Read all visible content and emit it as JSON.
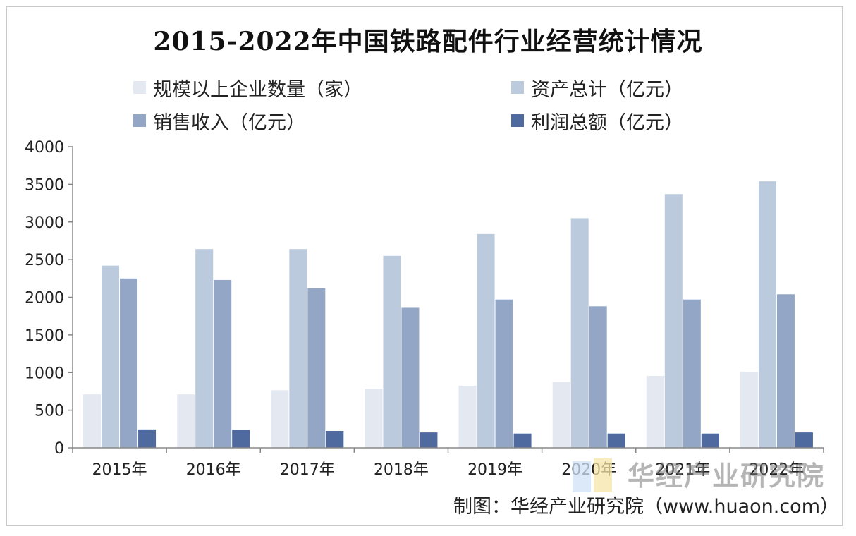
{
  "chart_data": {
    "type": "bar",
    "title": "2015-2022年中国铁路配件行业经营统计情况",
    "categories": [
      "2015年",
      "2016年",
      "2017年",
      "2018年",
      "2019年",
      "2020年",
      "2021年",
      "2022年"
    ],
    "series": [
      {
        "name": "规模以上企业数量（家）",
        "color": "#e3e8f1",
        "values": [
          710,
          710,
          765,
          785,
          825,
          875,
          955,
          1010
        ]
      },
      {
        "name": "资产总计（亿元）",
        "color": "#bccadd",
        "values": [
          2420,
          2640,
          2640,
          2550,
          2840,
          3050,
          3370,
          3540
        ]
      },
      {
        "name": "销售收入（亿元）",
        "color": "#93a6c6",
        "values": [
          2250,
          2230,
          2120,
          1860,
          1970,
          1880,
          1970,
          2040
        ]
      },
      {
        "name": "利润总额（亿元）",
        "color": "#4e6a9e",
        "values": [
          245,
          240,
          225,
          205,
          190,
          190,
          190,
          205
        ]
      }
    ],
    "yticks": [
      0,
      500,
      1000,
      1500,
      2000,
      2500,
      3000,
      3500,
      4000
    ],
    "ylim": [
      0,
      4000
    ],
    "legend_position": "top",
    "grid": false
  },
  "watermark": "华经产业研究院",
  "source": "制图：华经产业研究院（www.huaon.com）"
}
